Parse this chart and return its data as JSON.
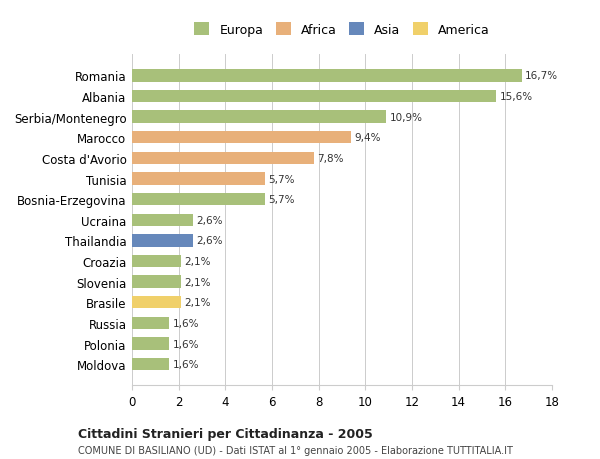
{
  "categories": [
    "Moldova",
    "Polonia",
    "Russia",
    "Brasile",
    "Slovenia",
    "Croazia",
    "Thailandia",
    "Ucraina",
    "Bosnia-Erzegovina",
    "Tunisia",
    "Costa d'Avorio",
    "Marocco",
    "Serbia/Montenegro",
    "Albania",
    "Romania"
  ],
  "values": [
    1.6,
    1.6,
    1.6,
    2.1,
    2.1,
    2.1,
    2.6,
    2.6,
    5.7,
    5.7,
    7.8,
    9.4,
    10.9,
    15.6,
    16.7
  ],
  "labels": [
    "1,6%",
    "1,6%",
    "1,6%",
    "2,1%",
    "2,1%",
    "2,1%",
    "2,6%",
    "2,6%",
    "5,7%",
    "5,7%",
    "7,8%",
    "9,4%",
    "10,9%",
    "15,6%",
    "16,7%"
  ],
  "continents": [
    "Europa",
    "Europa",
    "Europa",
    "America",
    "Europa",
    "Europa",
    "Asia",
    "Europa",
    "Europa",
    "Africa",
    "Africa",
    "Africa",
    "Europa",
    "Europa",
    "Europa"
  ],
  "colors": {
    "Europa": "#a8c07a",
    "Africa": "#e8b07a",
    "Asia": "#6688bb",
    "America": "#f0d06a"
  },
  "xlim": [
    0,
    18
  ],
  "xticks": [
    0,
    2,
    4,
    6,
    8,
    10,
    12,
    14,
    16,
    18
  ],
  "title": "Cittadini Stranieri per Cittadinanza - 2005",
  "subtitle": "COMUNE DI BASILIANO (UD) - Dati ISTAT al 1° gennaio 2005 - Elaborazione TUTTITALIA.IT",
  "background_color": "#ffffff",
  "grid_color": "#cccccc",
  "bar_height": 0.6,
  "legend_entries": [
    "Europa",
    "Africa",
    "Asia",
    "America"
  ]
}
